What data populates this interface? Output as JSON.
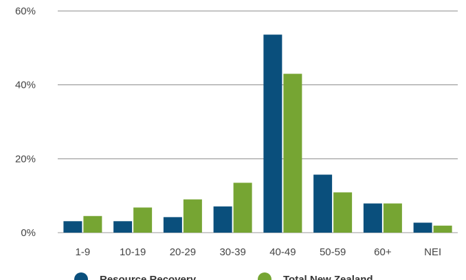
{
  "chart_data": {
    "type": "bar",
    "categories": [
      "1-9",
      "10-19",
      "20-29",
      "30-39",
      "40-49",
      "50-59",
      "60+",
      "NEI"
    ],
    "series": [
      {
        "name": "Resource Recovery",
        "color": "#0a4f7c",
        "values": [
          3.1,
          3.1,
          4.2,
          7.1,
          53.6,
          15.7,
          7.9,
          2.7
        ]
      },
      {
        "name": "Total New Zealand",
        "color": "#76a533",
        "values": [
          4.5,
          6.8,
          9.0,
          13.5,
          43.0,
          10.9,
          7.9,
          1.9
        ]
      }
    ],
    "ylim": [
      0,
      60
    ],
    "yticks": [
      0,
      20,
      40,
      60
    ],
    "ytick_labels": [
      "0%",
      "20%",
      "40%",
      "60%"
    ],
    "grid": true,
    "legend_position": "bottom",
    "title": "",
    "xlabel": "",
    "ylabel": ""
  }
}
